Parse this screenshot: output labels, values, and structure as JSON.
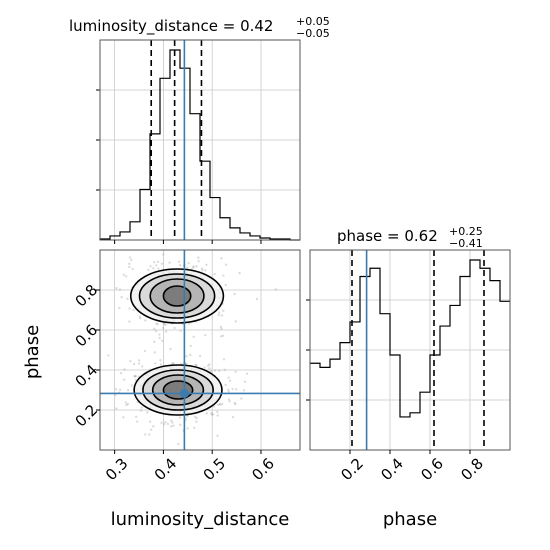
{
  "chart_data": {
    "type": "corner",
    "parameters": [
      "luminosity_distance",
      "phase"
    ],
    "titles": {
      "luminosity_distance": {
        "name": "luminosity_distance",
        "median": "0.42",
        "plus": "+0.05",
        "minus": "−0.05"
      },
      "phase": {
        "name": "phase",
        "median": "0.62",
        "plus": "+0.25",
        "minus": "−0.41"
      }
    },
    "axis_labels": {
      "x1": "luminosity_distance",
      "x2": "phase",
      "y2": "phase"
    },
    "ranges": {
      "luminosity_distance": [
        0.27,
        0.68
      ],
      "phase": [
        0.0,
        1.0
      ]
    },
    "ticks": {
      "luminosity_distance": [
        "0.3",
        "0.4",
        "0.5",
        "0.6"
      ],
      "phase_x": [
        "0.2",
        "0.4",
        "0.6",
        "0.8"
      ],
      "phase_y": [
        "0.2",
        "0.4",
        "0.6",
        "0.8"
      ]
    },
    "truth": {
      "luminosity_distance": 0.443,
      "phase": 0.283
    },
    "quantiles": {
      "luminosity_distance": [
        0.375,
        0.423,
        0.478
      ],
      "phase": [
        0.21,
        0.62,
        0.87
      ]
    },
    "hist_luminosity_distance": {
      "edges": [
        0.27,
        0.2905,
        0.311,
        0.3315,
        0.352,
        0.3725,
        0.393,
        0.4135,
        0.434,
        0.4545,
        0.475,
        0.4955,
        0.516,
        0.5365,
        0.557,
        0.5775,
        0.598,
        0.6185,
        0.639,
        0.6595,
        0.68
      ],
      "counts": [
        1,
        4,
        8,
        18,
        50,
        105,
        160,
        188,
        170,
        125,
        78,
        42,
        22,
        12,
        7,
        4,
        2,
        1,
        1,
        0
      ]
    },
    "hist_phase": {
      "edges": [
        0.0,
        0.05,
        0.1,
        0.15,
        0.2,
        0.25,
        0.3,
        0.35,
        0.4,
        0.45,
        0.5,
        0.55,
        0.6,
        0.65,
        0.7,
        0.75,
        0.8,
        0.85,
        0.9,
        0.95,
        1.0
      ],
      "counts": [
        42,
        40,
        44,
        52,
        62,
        84,
        88,
        66,
        46,
        16,
        18,
        28,
        46,
        60,
        70,
        84,
        92,
        88,
        82,
        72
      ]
    },
    "density_contours": [
      {
        "center": [
          0.428,
          0.77
        ],
        "radii": [
          0.028,
          0.055,
          0.077,
          0.095
        ],
        "ry": [
          0.05,
          0.085,
          0.11,
          0.135
        ]
      },
      {
        "center": [
          0.43,
          0.3
        ],
        "radii": [
          0.03,
          0.052,
          0.072,
          0.09
        ],
        "ry": [
          0.045,
          0.075,
          0.1,
          0.125
        ]
      }
    ]
  }
}
